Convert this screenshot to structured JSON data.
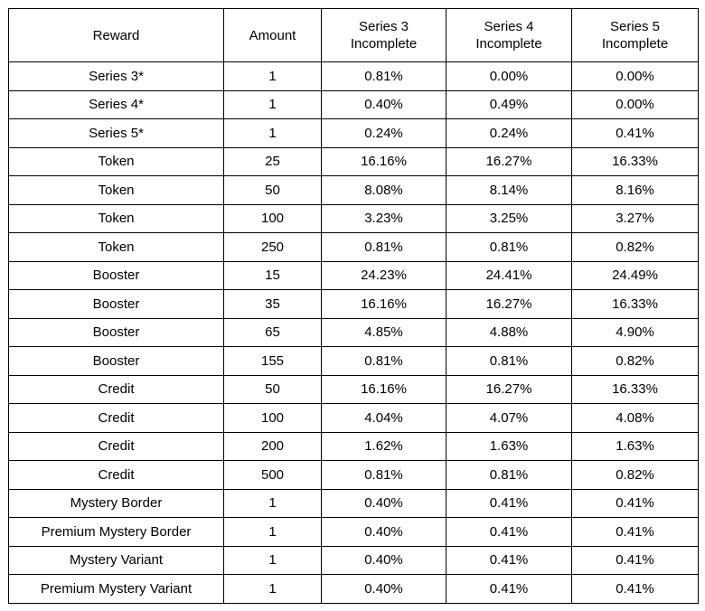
{
  "table": {
    "header": [
      "Reward",
      "Amount",
      "Series 3\nIncomplete",
      "Series 4\nIncomplete",
      "Series 5\nIncomplete"
    ],
    "rows": [
      [
        "Series 3*",
        "1",
        "0.81%",
        "0.00%",
        "0.00%"
      ],
      [
        "Series 4*",
        "1",
        "0.40%",
        "0.49%",
        "0.00%"
      ],
      [
        "Series 5*",
        "1",
        "0.24%",
        "0.24%",
        "0.41%"
      ],
      [
        "Token",
        "25",
        "16.16%",
        "16.27%",
        "16.33%"
      ],
      [
        "Token",
        "50",
        "8.08%",
        "8.14%",
        "8.16%"
      ],
      [
        "Token",
        "100",
        "3.23%",
        "3.25%",
        "3.27%"
      ],
      [
        "Token",
        "250",
        "0.81%",
        "0.81%",
        "0.82%"
      ],
      [
        "Booster",
        "15",
        "24.23%",
        "24.41%",
        "24.49%"
      ],
      [
        "Booster",
        "35",
        "16.16%",
        "16.27%",
        "16.33%"
      ],
      [
        "Booster",
        "65",
        "4.85%",
        "4.88%",
        "4.90%"
      ],
      [
        "Booster",
        "155",
        "0.81%",
        "0.81%",
        "0.82%"
      ],
      [
        "Credit",
        "50",
        "16.16%",
        "16.27%",
        "16.33%"
      ],
      [
        "Credit",
        "100",
        "4.04%",
        "4.07%",
        "4.08%"
      ],
      [
        "Credit",
        "200",
        "1.62%",
        "1.63%",
        "1.63%"
      ],
      [
        "Credit",
        "500",
        "0.81%",
        "0.81%",
        "0.82%"
      ],
      [
        "Mystery Border",
        "1",
        "0.40%",
        "0.41%",
        "0.41%"
      ],
      [
        "Premium Mystery Border",
        "1",
        "0.40%",
        "0.41%",
        "0.41%"
      ],
      [
        "Mystery Variant",
        "1",
        "0.40%",
        "0.41%",
        "0.41%"
      ],
      [
        "Premium Mystery Variant",
        "1",
        "0.40%",
        "0.41%",
        "0.41%"
      ]
    ]
  }
}
